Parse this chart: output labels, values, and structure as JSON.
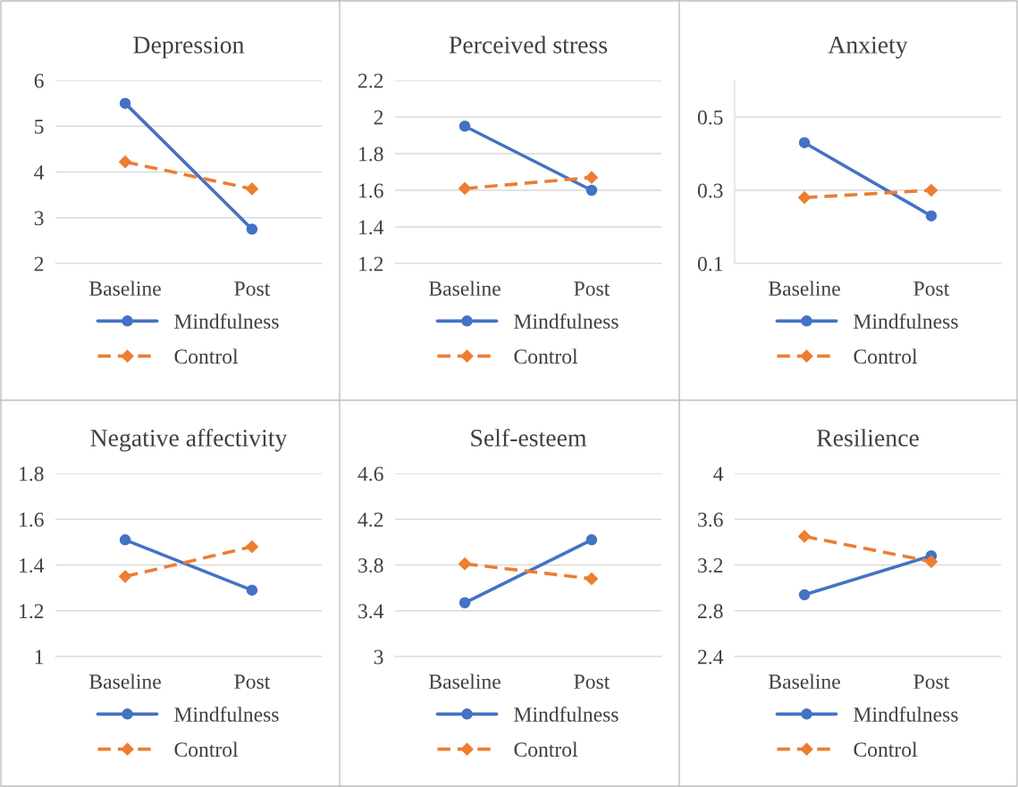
{
  "chart_data": [
    {
      "type": "line",
      "title": "Depression",
      "categories": [
        "Baseline",
        "Post"
      ],
      "ylim": [
        2,
        6
      ],
      "yticks": [
        2,
        3,
        4,
        5,
        6
      ],
      "grid": "y",
      "legend": "bottom",
      "series": [
        {
          "name": "Mindfulness",
          "color": "#4472c4",
          "values": [
            5.5,
            2.75
          ],
          "marker": "circle",
          "line_style": "solid"
        },
        {
          "name": "Control",
          "color": "#ed7d31",
          "values": [
            4.22,
            3.63
          ],
          "marker": "diamond",
          "line_style": "dashed"
        }
      ]
    },
    {
      "type": "line",
      "title": "Perceived stress",
      "categories": [
        "Baseline",
        "Post"
      ],
      "ylim": [
        1.2,
        2.2
      ],
      "yticks": [
        1.2,
        1.4,
        1.6,
        1.8,
        2,
        2.2
      ],
      "grid": "y",
      "legend": "bottom",
      "series": [
        {
          "name": "Mindfulness",
          "color": "#4472c4",
          "values": [
            1.95,
            1.6
          ],
          "marker": "circle",
          "line_style": "solid"
        },
        {
          "name": "Control",
          "color": "#ed7d31",
          "values": [
            1.61,
            1.67
          ],
          "marker": "diamond",
          "line_style": "dashed"
        }
      ]
    },
    {
      "type": "line",
      "title": "Anxiety",
      "categories": [
        "Baseline",
        "Post"
      ],
      "ylim": [
        0.1,
        0.6
      ],
      "yticks": [
        0.1,
        0.3,
        0.5
      ],
      "grid": "y",
      "legend": "bottom",
      "series": [
        {
          "name": "Mindfulness",
          "color": "#4472c4",
          "values": [
            0.43,
            0.23
          ],
          "marker": "circle",
          "line_style": "solid"
        },
        {
          "name": "Control",
          "color": "#ed7d31",
          "values": [
            0.28,
            0.3
          ],
          "marker": "diamond",
          "line_style": "dashed"
        }
      ]
    },
    {
      "type": "line",
      "title": "Negative affectivity",
      "categories": [
        "Baseline",
        "Post"
      ],
      "ylim": [
        1,
        1.8
      ],
      "yticks": [
        1,
        1.2,
        1.4,
        1.6,
        1.8
      ],
      "grid": "y",
      "legend": "bottom",
      "series": [
        {
          "name": "Mindfulness",
          "color": "#4472c4",
          "values": [
            1.51,
            1.29
          ],
          "marker": "circle",
          "line_style": "solid"
        },
        {
          "name": "Control",
          "color": "#ed7d31",
          "values": [
            1.35,
            1.48
          ],
          "marker": "diamond",
          "line_style": "dashed"
        }
      ]
    },
    {
      "type": "line",
      "title": "Self-esteem",
      "categories": [
        "Baseline",
        "Post"
      ],
      "ylim": [
        3,
        4.6
      ],
      "yticks": [
        3,
        3.4,
        3.8,
        4.2,
        4.6
      ],
      "grid": "y",
      "legend": "bottom",
      "series": [
        {
          "name": "Mindfulness",
          "color": "#4472c4",
          "values": [
            3.47,
            4.02
          ],
          "marker": "circle",
          "line_style": "solid"
        },
        {
          "name": "Control",
          "color": "#ed7d31",
          "values": [
            3.81,
            3.68
          ],
          "marker": "diamond",
          "line_style": "dashed"
        }
      ]
    },
    {
      "type": "line",
      "title": "Resilience",
      "categories": [
        "Baseline",
        "Post"
      ],
      "ylim": [
        2.4,
        4
      ],
      "yticks": [
        2.4,
        2.8,
        3.2,
        3.6,
        4
      ],
      "grid": "y",
      "legend": "bottom",
      "series": [
        {
          "name": "Mindfulness",
          "color": "#4472c4",
          "values": [
            2.94,
            3.28
          ],
          "marker": "circle",
          "line_style": "solid"
        },
        {
          "name": "Control",
          "color": "#ed7d31",
          "values": [
            3.45,
            3.23
          ],
          "marker": "diamond",
          "line_style": "dashed"
        }
      ]
    }
  ]
}
